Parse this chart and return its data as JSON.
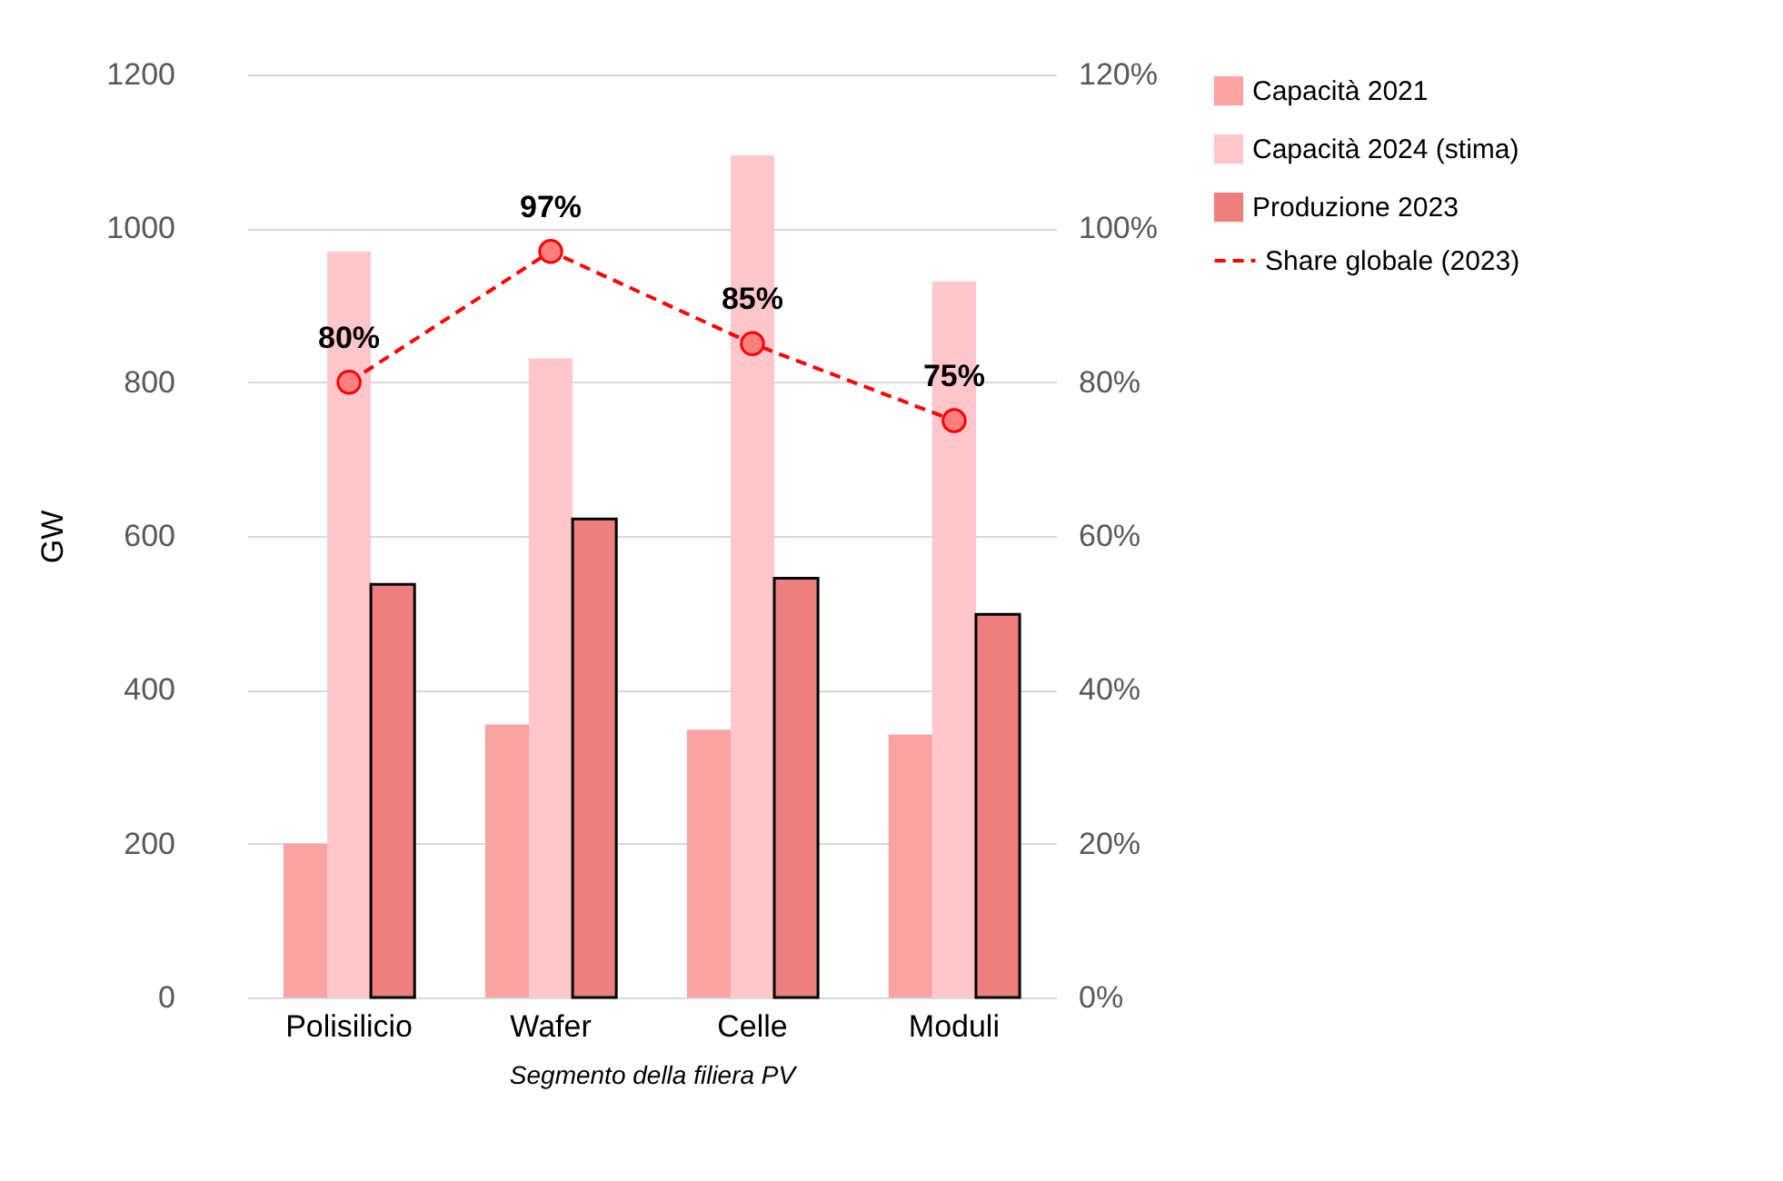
{
  "chart_data": {
    "type": "bar",
    "xlabel": "Segmento della filiera PV",
    "ylabel": "GW",
    "categories": [
      "Polisilicio",
      "Wafer",
      "Celle",
      "Moduli"
    ],
    "series": [
      {
        "name": "Capacità 2021",
        "color": "#f9a3a3",
        "values": [
          200,
          355,
          348,
          342
        ]
      },
      {
        "name": "Capacità 2024 (stima)",
        "color": "#ffc6cc",
        "values": [
          970,
          831,
          1095,
          931
        ]
      },
      {
        "name": "Produzione 2023",
        "color": "#ee7f7f",
        "values": [
          537,
          622,
          545,
          498
        ]
      },
      {
        "name": "Share globale (2023)",
        "type": "line",
        "axis": "y2",
        "color": "#ff0000",
        "line_style": "dashed",
        "marker": "circle",
        "values": [
          80,
          97,
          85,
          75
        ],
        "value_labels": [
          "80%",
          "97%",
          "85%",
          "75%"
        ]
      }
    ],
    "ylim": [
      0,
      1200
    ],
    "yticks": [
      0,
      200,
      400,
      600,
      800,
      1000,
      1200
    ],
    "y2lim": [
      0,
      120
    ],
    "y2ticks": [
      {
        "value": 0,
        "label": "0%"
      },
      {
        "value": 20,
        "label": "20%"
      },
      {
        "value": 40,
        "label": "40%"
      },
      {
        "value": 60,
        "label": "60%"
      },
      {
        "value": 80,
        "label": "80%"
      },
      {
        "value": 100,
        "label": "100%"
      },
      {
        "value": 120,
        "label": "120%"
      }
    ],
    "grid": "y",
    "legend": "right"
  }
}
